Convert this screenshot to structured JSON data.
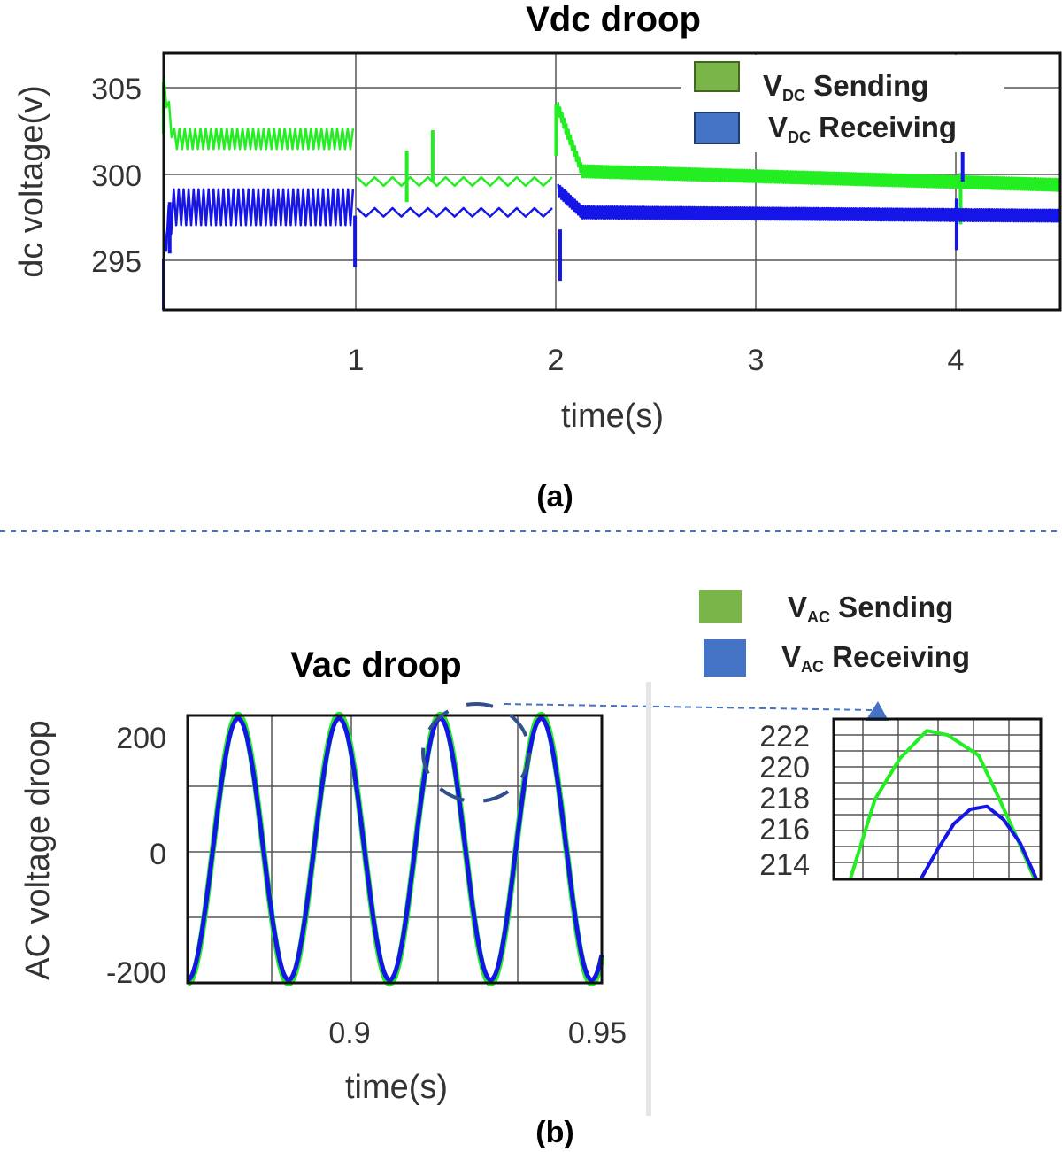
{
  "chart_data": [
    {
      "type": "line",
      "title": "Vdc droop",
      "xlabel": "time(s)",
      "ylabel": "dc voltage(v)",
      "panel_label": "(a)",
      "xlim": [
        0.05,
        4.55
      ],
      "ylim": [
        292.5,
        307.5
      ],
      "xticks": [
        1,
        2,
        3,
        4
      ],
      "yticks": [
        295,
        300,
        305
      ],
      "grid": true,
      "legend_position": "top-right",
      "legend": [
        {
          "prefix": "V",
          "sub": "DC",
          "suffix": " Sending",
          "color": "#79b548"
        },
        {
          "prefix": "V",
          "sub": "DC",
          "suffix": " Receiving",
          "color": "#4472c4"
        }
      ],
      "series": [
        {
          "name": "VDC Sending",
          "color": "#22ee22",
          "segments": [
            {
              "x": [
                0.05,
                0.1,
                1.0
              ],
              "y": [
                305.8,
                302.5,
                302.5
              ],
              "ripple": 1.2,
              "osc": 38
            },
            {
              "x": [
                1.02,
                2.0
              ],
              "y": [
                300.0,
                300.0
              ],
              "ripple": 0.5,
              "osc": 11
            },
            {
              "x": [
                2.03,
                2.15,
                4.55
              ],
              "y": [
                304.3,
                300.6,
                299.8
              ],
              "ripple": 0.7,
              "osc": 95
            }
          ],
          "spikes": [
            {
              "x": 0.05,
              "y": 305.8
            },
            {
              "x": 1.27,
              "y": 301.8
            },
            {
              "x": 1.4,
              "y": 303.0
            },
            {
              "x": 2.02,
              "y": 304.5
            },
            {
              "x": 4.05,
              "y": 300.5
            }
          ]
        },
        {
          "name": "VDC Receiving",
          "color": "#1515e8",
          "segments": [
            {
              "x": [
                0.05,
                0.1,
                1.0
              ],
              "y": [
                296.5,
                298.5,
                298.5
              ],
              "ripple": 2.1,
              "osc": 40
            },
            {
              "x": [
                1.02,
                2.0
              ],
              "y": [
                298.2,
                298.2
              ],
              "ripple": 0.5,
              "osc": 11
            },
            {
              "x": [
                2.03,
                2.15,
                4.55
              ],
              "y": [
                299.5,
                298.2,
                298.0
              ],
              "ripple": 0.7,
              "osc": 95
            }
          ],
          "spikes": [
            {
              "x": 0.05,
              "y": 292.5
            },
            {
              "x": 0.08,
              "y": 295.8
            },
            {
              "x": 1.01,
              "y": 295.0
            },
            {
              "x": 2.04,
              "y": 294.2
            },
            {
              "x": 4.03,
              "y": 296.0
            },
            {
              "x": 4.06,
              "y": 300.0
            }
          ]
        }
      ]
    },
    {
      "type": "line",
      "title": "Vac droop",
      "xlabel": "time(s)",
      "ylabel": "AC voltage droop",
      "panel_label": "(b)",
      "xlim": [
        0.87,
        0.952
      ],
      "ylim": [
        -222,
        222
      ],
      "xticks": [
        0.9,
        0.95
      ],
      "xtick_labels": [
        "0.9",
        "0.95"
      ],
      "yticks": [
        -200,
        0,
        200
      ],
      "grid": true,
      "legend": [
        {
          "prefix": "V",
          "sub": "AC",
          "suffix": " Sending",
          "color": "#79b548"
        },
        {
          "prefix": "V",
          "sub": "AC",
          "suffix": " Receiving",
          "color": "#4472c4"
        }
      ],
      "series": [
        {
          "name": "VAC Sending",
          "color": "#22ee22",
          "amplitude": 223,
          "frequency_hz": 50,
          "phase_deg": 90
        },
        {
          "name": "VAC Receiving",
          "color": "#1515e8",
          "amplitude": 217,
          "frequency_hz": 50,
          "phase_deg": 90
        }
      ]
    },
    {
      "type": "line",
      "title": "",
      "xlabel": "",
      "ylabel": "",
      "xlim": [
        0,
        1
      ],
      "ylim": [
        212.5,
        223.5
      ],
      "yticks": [
        214,
        216,
        218,
        220,
        222
      ],
      "grid": true,
      "series": [
        {
          "name": "VAC Sending",
          "color": "#22ee22",
          "x": [
            0.08,
            0.2,
            0.32,
            0.45,
            0.55,
            0.7,
            0.8,
            0.88,
            0.97
          ],
          "y": [
            212.5,
            218.0,
            220.8,
            222.7,
            222.4,
            221.0,
            218.0,
            215.5,
            212.5
          ]
        },
        {
          "name": "VAC Receiving",
          "color": "#1515e8",
          "x": [
            0.42,
            0.5,
            0.58,
            0.66,
            0.74,
            0.82,
            0.9,
            0.98
          ],
          "y": [
            212.5,
            214.5,
            216.3,
            217.3,
            217.5,
            216.6,
            215.0,
            212.5
          ]
        }
      ]
    }
  ]
}
